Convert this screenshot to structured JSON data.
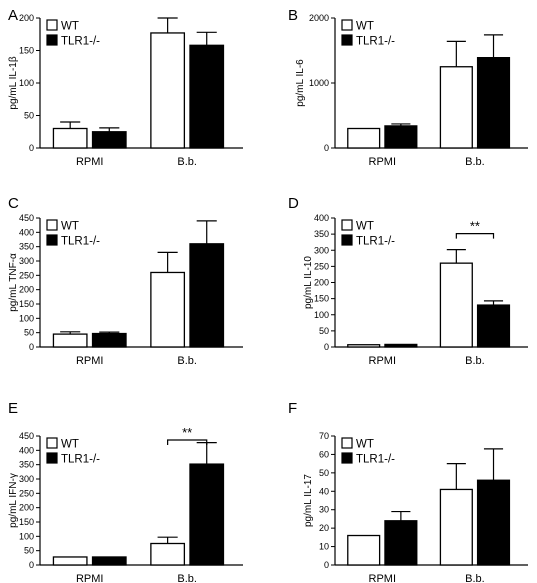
{
  "legend": {
    "items": [
      {
        "label": "WT",
        "color": "#ffffff"
      },
      {
        "label": "TLR1-/-",
        "color": "#000000"
      }
    ]
  },
  "chart_data": [
    {
      "panel": "A",
      "type": "bar",
      "ylabel": "pg/mL IL-1β",
      "categories": [
        "RPMI",
        "B.b."
      ],
      "yticks": [
        0,
        50,
        100,
        150,
        200
      ],
      "ylim": [
        0,
        200
      ],
      "series": [
        {
          "name": "WT",
          "values": [
            30,
            177
          ],
          "errors": [
            10,
            23
          ]
        },
        {
          "name": "TLR1-/-",
          "values": [
            25,
            158
          ],
          "errors": [
            6,
            20
          ]
        }
      ],
      "significance": null
    },
    {
      "panel": "B",
      "type": "bar",
      "ylabel": "pg/mL IL-6",
      "categories": [
        "RPMI",
        "B.b."
      ],
      "yticks": [
        0,
        1000,
        2000
      ],
      "ylim": [
        0,
        2000
      ],
      "series": [
        {
          "name": "WT",
          "values": [
            300,
            1250
          ],
          "errors": [
            0,
            390
          ]
        },
        {
          "name": "TLR1-/-",
          "values": [
            340,
            1390
          ],
          "errors": [
            30,
            350
          ]
        }
      ],
      "significance": null
    },
    {
      "panel": "C",
      "type": "bar",
      "ylabel": "pg/mL TNF-α",
      "categories": [
        "RPMI",
        "B.b."
      ],
      "yticks": [
        0,
        50,
        100,
        150,
        200,
        250,
        300,
        350,
        400,
        450
      ],
      "ylim": [
        0,
        450
      ],
      "series": [
        {
          "name": "WT",
          "values": [
            45,
            260
          ],
          "errors": [
            8,
            70
          ]
        },
        {
          "name": "TLR1-/-",
          "values": [
            47,
            360
          ],
          "errors": [
            5,
            80
          ]
        }
      ],
      "significance": null
    },
    {
      "panel": "D",
      "type": "bar",
      "ylabel": "pg/mL IL-10",
      "categories": [
        "RPMI",
        "B.b."
      ],
      "yticks": [
        0,
        50,
        100,
        150,
        200,
        250,
        300,
        350,
        400
      ],
      "ylim": [
        0,
        400
      ],
      "series": [
        {
          "name": "WT",
          "values": [
            7,
            260
          ],
          "errors": [
            0,
            42
          ]
        },
        {
          "name": "TLR1-/-",
          "values": [
            8,
            130
          ],
          "errors": [
            0,
            13
          ]
        }
      ],
      "significance": {
        "label": "**",
        "between": "B.b."
      }
    },
    {
      "panel": "E",
      "type": "bar",
      "ylabel": "pg/mL IFN-γ",
      "categories": [
        "RPMI",
        "B.b."
      ],
      "yticks": [
        0,
        50,
        100,
        150,
        200,
        250,
        300,
        350,
        400,
        450
      ],
      "ylim": [
        0,
        450
      ],
      "series": [
        {
          "name": "WT",
          "values": [
            28,
            75
          ],
          "errors": [
            0,
            22
          ]
        },
        {
          "name": "TLR1-/-",
          "values": [
            28,
            352
          ],
          "errors": [
            0,
            75
          ]
        }
      ],
      "significance": {
        "label": "**",
        "between": "B.b."
      }
    },
    {
      "panel": "F",
      "type": "bar",
      "ylabel": "pg/mL IL-17",
      "categories": [
        "RPMI",
        "B.b."
      ],
      "yticks": [
        0,
        10,
        20,
        30,
        40,
        50,
        60,
        70
      ],
      "ylim": [
        0,
        70
      ],
      "series": [
        {
          "name": "WT",
          "values": [
            16,
            41
          ],
          "errors": [
            0,
            14
          ]
        },
        {
          "name": "TLR1-/-",
          "values": [
            24,
            46
          ],
          "errors": [
            5,
            17
          ]
        }
      ],
      "significance": null
    }
  ]
}
